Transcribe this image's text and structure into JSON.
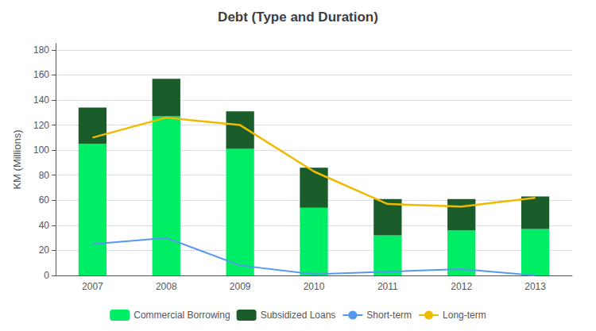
{
  "chart_data": {
    "type": "bar",
    "title": "Debt (Type and Duration)",
    "ylabel": "KM (Millions)",
    "categories": [
      "2007",
      "2008",
      "2009",
      "2010",
      "2011",
      "2012",
      "2013"
    ],
    "series": [
      {
        "name": "Commercial Borrowing",
        "type": "bar",
        "color": "#00EE66",
        "values": [
          105,
          127,
          101,
          54,
          32,
          36,
          37
        ]
      },
      {
        "name": "Subsidized Loans",
        "type": "bar",
        "color": "#1A5C2A",
        "values": [
          29,
          30,
          30,
          32,
          29,
          25,
          26
        ]
      },
      {
        "name": "Short-term",
        "type": "line",
        "color": "#5599EE",
        "marker": "none",
        "values": [
          25,
          30,
          8,
          1,
          3,
          5,
          0
        ]
      },
      {
        "name": "Long-term",
        "type": "line",
        "color": "#EEBB00",
        "marker": "none",
        "values": [
          110,
          126,
          120,
          83,
          57,
          55,
          62
        ]
      }
    ],
    "stacked": true,
    "ylim": [
      0,
      185
    ],
    "yticks": [
      0,
      20,
      40,
      60,
      80,
      100,
      120,
      140,
      160,
      180
    ],
    "grid": true,
    "legend": "bottom"
  }
}
